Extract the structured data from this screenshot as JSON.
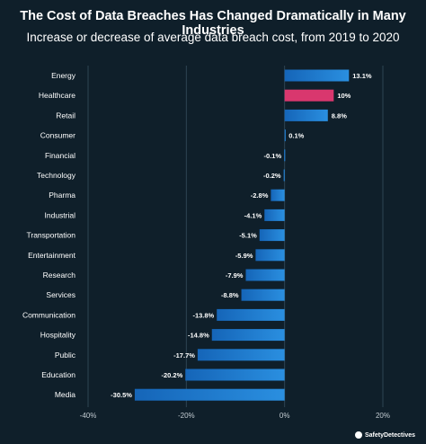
{
  "header": {
    "title": "The Cost of Data Breaches Has Changed Dramatically in Many Industries",
    "subtitle": "Increase or decrease of average data breach cost, from 2019 to 2020"
  },
  "brand": {
    "name": "SafetyDetectives"
  },
  "colors": {
    "background": "#0f1f2a",
    "bar": "#1f7fd0",
    "highlight": "#d9376e",
    "grid": "#2d4553",
    "text": "#ffffff",
    "axis_text": "#c3ccd2"
  },
  "chart_data": {
    "type": "bar",
    "orientation": "horizontal",
    "title": "The Cost of Data Breaches Has Changed Dramatically in Many Industries",
    "subtitle": "Increase or decrease of average data breach cost, from 2019 to 2020",
    "categories": [
      "Energy",
      "Healthcare",
      "Retail",
      "Consumer",
      "Financial",
      "Technology",
      "Pharma",
      "Industrial",
      "Transportation",
      "Entertainment",
      "Research",
      "Services",
      "Communication",
      "Hospitality",
      "Public",
      "Education",
      "Media"
    ],
    "values": [
      13.1,
      10,
      8.8,
      0.1,
      -0.1,
      -0.2,
      -2.8,
      -4.1,
      -5.1,
      -5.9,
      -7.9,
      -8.8,
      -13.8,
      -14.8,
      -17.7,
      -20.2,
      -30.5
    ],
    "value_labels": [
      "13.1%",
      "10%",
      "8.8%",
      "0.1%",
      "-0.1%",
      "-0.2%",
      "-2.8%",
      "-4.1%",
      "-5.1%",
      "-5.9%",
      "-7.9%",
      "-8.8%",
      "-13.8%",
      "-14.8%",
      "-17.7%",
      "-20.2%",
      "-30.5%"
    ],
    "highlight_category": "Healthcare",
    "xlim": [
      -40,
      20
    ],
    "xticks": [
      -40,
      -20,
      0,
      20
    ],
    "xtick_labels": [
      "-40%",
      "-20%",
      "0%",
      "20%"
    ],
    "grid": true,
    "legend": false
  }
}
